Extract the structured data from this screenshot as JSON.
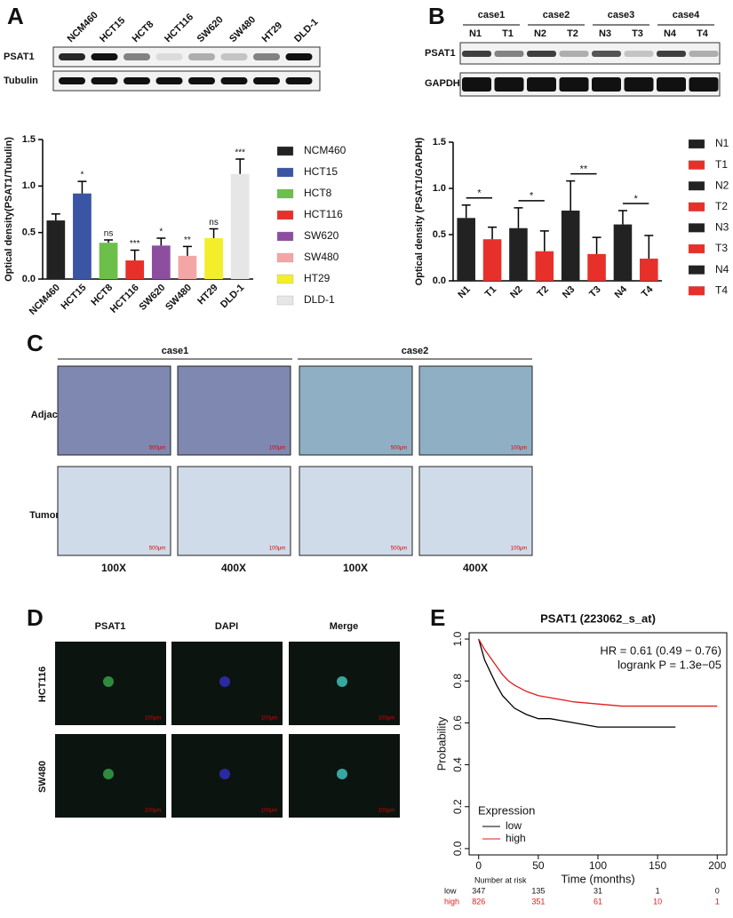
{
  "panel_labels": [
    "A",
    "B",
    "C",
    "D",
    "E"
  ],
  "blot_a": {
    "lanes": [
      "NCM460",
      "HCT15",
      "HCT8",
      "HCT116",
      "SW620",
      "SW480",
      "HT29",
      "DLD-1"
    ],
    "rows": [
      "PSAT1",
      "Tubulin"
    ]
  },
  "blot_b": {
    "cases": [
      "case1",
      "case2",
      "case3",
      "case4"
    ],
    "lanes": [
      "N1",
      "T1",
      "N2",
      "T2",
      "N3",
      "T3",
      "N4",
      "T4"
    ],
    "rows": [
      "PSAT1",
      "GAPDH"
    ]
  },
  "ihc": {
    "columns": [
      "case1",
      "case2"
    ],
    "rows": [
      "Adjacent",
      "Tumor"
    ],
    "magnifications": [
      "100X",
      "400X",
      "100X",
      "400X"
    ],
    "scale_bars": [
      "500μm",
      "100μm"
    ]
  },
  "if": {
    "columns": [
      "PSAT1",
      "DAPI",
      "Merge"
    ],
    "rows": [
      "HCT116",
      "SW480"
    ],
    "scale_bar": "100μm"
  },
  "chart_data": [
    {
      "type": "bar",
      "y_label": "Optical density(PSAT1/Tubulin)",
      "categories": [
        "NCM460",
        "HCT15",
        "HCT8",
        "HCT116",
        "SW620",
        "SW480",
        "HT29",
        "DLD-1"
      ],
      "values": [
        0.63,
        0.92,
        0.39,
        0.2,
        0.36,
        0.25,
        0.44,
        1.13
      ],
      "errors": [
        0.07,
        0.13,
        0.03,
        0.11,
        0.08,
        0.1,
        0.1,
        0.16
      ],
      "annotations": [
        null,
        "*",
        "ns",
        "***",
        "*",
        "**",
        "ns",
        "***"
      ],
      "colors": [
        "#222222",
        "#3a55a4",
        "#6cc04a",
        "#e8302a",
        "#8e4ea0",
        "#f4a6a6",
        "#f2ee2a",
        "#e6e6e6"
      ],
      "ylim": [
        0,
        1.5
      ],
      "yticks": [
        {
          "value": 0,
          "label": "0.0"
        },
        0.5,
        {
          "value": 1,
          "label": "1.0"
        },
        1.5
      ],
      "legend": "right"
    },
    {
      "type": "bar",
      "y_label": "Optical density (PSAT1/GAPDH)",
      "categories": [
        "N1",
        "T1",
        "N2",
        "T2",
        "N3",
        "T3",
        "N4",
        "T4"
      ],
      "values": [
        0.68,
        0.45,
        0.57,
        0.32,
        0.76,
        0.29,
        0.61,
        0.24
      ],
      "errors": [
        0.14,
        0.13,
        0.22,
        0.22,
        0.32,
        0.18,
        0.15,
        0.25
      ],
      "significance": [
        "*",
        "*",
        "**",
        "*"
      ],
      "colors": [
        "#222222",
        "#e8302a",
        "#222222",
        "#e8302a",
        "#222222",
        "#e8302a",
        "#222222",
        "#e8302a"
      ],
      "ylim": [
        0,
        1.5
      ],
      "yticks": [
        {
          "value": 0,
          "label": "0.0"
        },
        0.5,
        {
          "value": 1,
          "label": "1.0"
        },
        1.5
      ],
      "legend": "right"
    },
    {
      "type": "line",
      "title": "PSAT1 (223062_s_at)",
      "x_label": "Time (months)",
      "y_label": "Probability",
      "annotations": [
        "HR = 0.61 (0.49 − 0.76)",
        "logrank P = 1.3e−05"
      ],
      "legend_title": "Expression",
      "legend": "bottom-left",
      "series": [
        {
          "name": "low",
          "color": "#000000",
          "x": [
            0,
            5,
            10,
            15,
            20,
            25,
            30,
            40,
            50,
            60,
            80,
            100,
            120,
            140,
            165
          ],
          "values": [
            1,
            0.9,
            0.84,
            0.78,
            0.73,
            0.7,
            0.67,
            0.64,
            0.62,
            0.62,
            0.6,
            0.58,
            0.58,
            0.58,
            0.58
          ]
        },
        {
          "name": "high",
          "color": "#e41a1c",
          "x": [
            0,
            5,
            10,
            15,
            20,
            25,
            30,
            40,
            50,
            60,
            80,
            100,
            120,
            150,
            200
          ],
          "values": [
            1,
            0.95,
            0.91,
            0.87,
            0.83,
            0.8,
            0.78,
            0.75,
            0.73,
            0.72,
            0.7,
            0.69,
            0.68,
            0.68,
            0.68
          ]
        }
      ],
      "xlim": [
        -8,
        208
      ],
      "xticks": [
        0,
        50,
        100,
        150,
        200
      ],
      "ylim": [
        -0.03,
        1.03
      ],
      "yticks": [
        {
          "value": 0,
          "label": "0.0"
        },
        0.2,
        0.4,
        0.6,
        0.8,
        {
          "value": 1,
          "label": "1.0"
        }
      ],
      "risk_table": {
        "title": "Number at risk",
        "rows": [
          "low",
          "high"
        ],
        "counts": [
          [
            347,
            135,
            31,
            1,
            0
          ],
          [
            826,
            351,
            61,
            10,
            1
          ]
        ]
      }
    }
  ]
}
